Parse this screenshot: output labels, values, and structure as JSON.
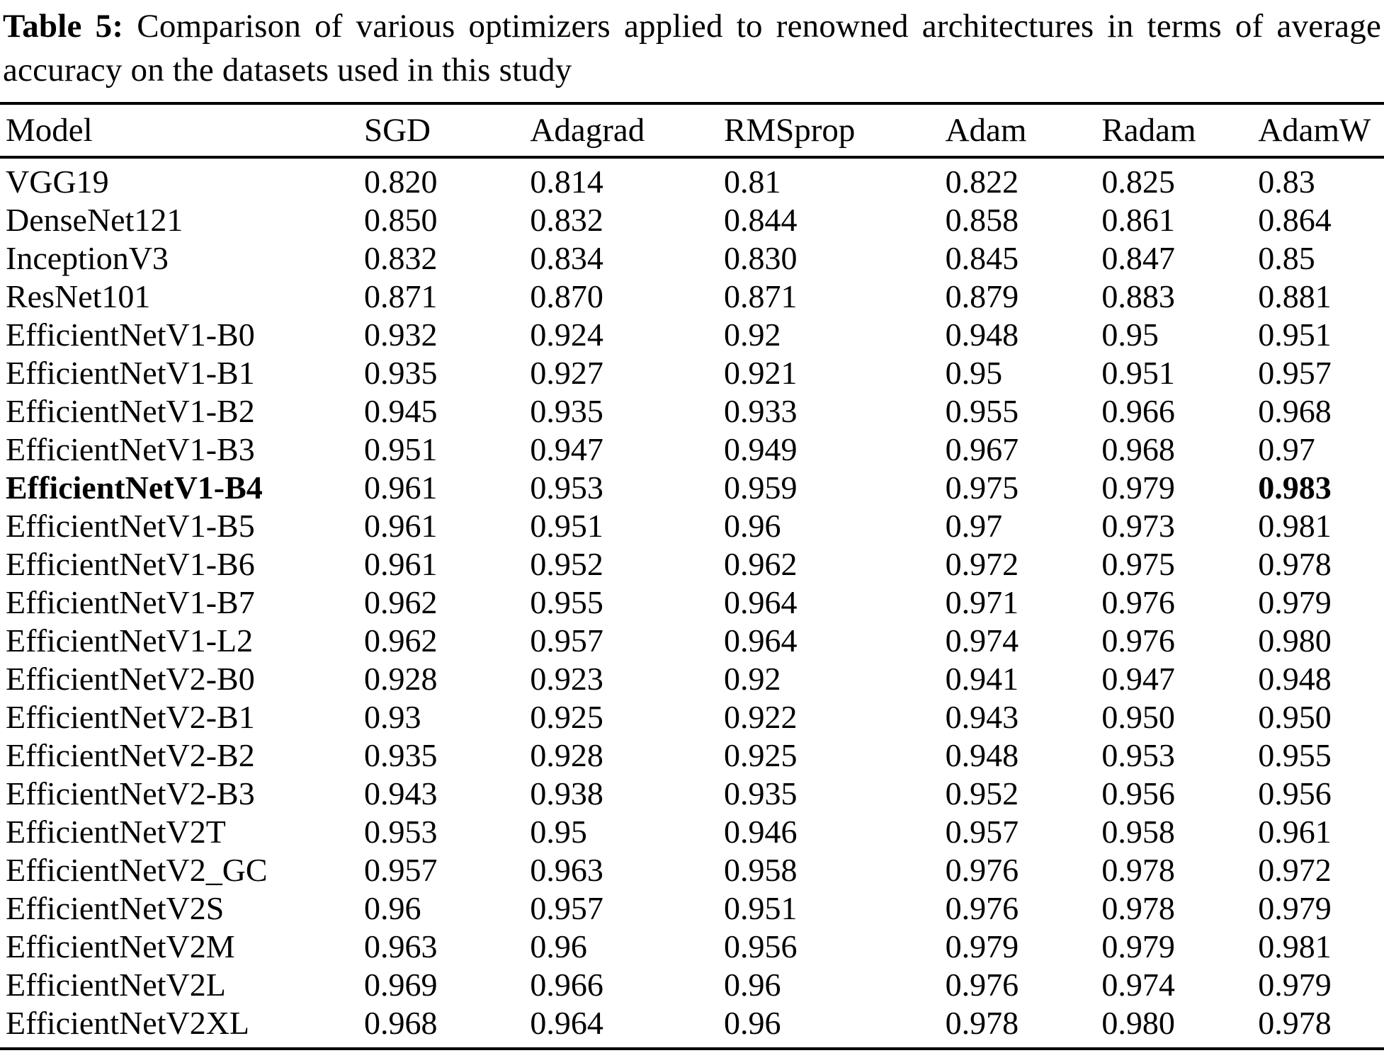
{
  "caption": {
    "label": "Table 5:",
    "text": "Comparison of various optimizers applied to renowned architectures in terms of average accuracy on the datasets used in this study"
  },
  "table": {
    "columns": [
      "Model",
      "SGD",
      "Adagrad",
      "RMSprop",
      "Adam",
      "Radam",
      "AdamW"
    ],
    "rows": [
      {
        "model": "VGG19",
        "bold_model": false,
        "values": [
          "0.820",
          "0.814",
          "0.81",
          "0.822",
          "0.825",
          "0.83"
        ],
        "bold_cols": []
      },
      {
        "model": "DenseNet121",
        "bold_model": false,
        "values": [
          "0.850",
          "0.832",
          "0.844",
          "0.858",
          "0.861",
          "0.864"
        ],
        "bold_cols": []
      },
      {
        "model": "InceptionV3",
        "bold_model": false,
        "values": [
          "0.832",
          "0.834",
          "0.830",
          "0.845",
          "0.847",
          "0.85"
        ],
        "bold_cols": []
      },
      {
        "model": "ResNet101",
        "bold_model": false,
        "values": [
          "0.871",
          "0.870",
          "0.871",
          "0.879",
          "0.883",
          "0.881"
        ],
        "bold_cols": []
      },
      {
        "model": "EfficientNetV1-B0",
        "bold_model": false,
        "values": [
          "0.932",
          "0.924",
          "0.92",
          "0.948",
          "0.95",
          "0.951"
        ],
        "bold_cols": []
      },
      {
        "model": "EfficientNetV1-B1",
        "bold_model": false,
        "values": [
          "0.935",
          "0.927",
          "0.921",
          "0.95",
          "0.951",
          "0.957"
        ],
        "bold_cols": []
      },
      {
        "model": "EfficientNetV1-B2",
        "bold_model": false,
        "values": [
          "0.945",
          "0.935",
          "0.933",
          "0.955",
          "0.966",
          "0.968"
        ],
        "bold_cols": []
      },
      {
        "model": "EfficientNetV1-B3",
        "bold_model": false,
        "values": [
          "0.951",
          "0.947",
          "0.949",
          "0.967",
          "0.968",
          "0.97"
        ],
        "bold_cols": []
      },
      {
        "model": "EfficientNetV1-B4",
        "bold_model": true,
        "values": [
          "0.961",
          "0.953",
          "0.959",
          "0.975",
          "0.979",
          "0.983"
        ],
        "bold_cols": [
          5
        ]
      },
      {
        "model": "EfficientNetV1-B5",
        "bold_model": false,
        "values": [
          "0.961",
          "0.951",
          "0.96",
          "0.97",
          "0.973",
          "0.981"
        ],
        "bold_cols": []
      },
      {
        "model": "EfficientNetV1-B6",
        "bold_model": false,
        "values": [
          "0.961",
          "0.952",
          "0.962",
          "0.972",
          "0.975",
          "0.978"
        ],
        "bold_cols": []
      },
      {
        "model": "EfficientNetV1-B7",
        "bold_model": false,
        "values": [
          "0.962",
          "0.955",
          "0.964",
          "0.971",
          "0.976",
          "0.979"
        ],
        "bold_cols": []
      },
      {
        "model": "EfficientNetV1-L2",
        "bold_model": false,
        "values": [
          "0.962",
          "0.957",
          "0.964",
          "0.974",
          "0.976",
          "0.980"
        ],
        "bold_cols": []
      },
      {
        "model": "EfficientNetV2-B0",
        "bold_model": false,
        "values": [
          "0.928",
          "0.923",
          "0.92",
          "0.941",
          "0.947",
          "0.948"
        ],
        "bold_cols": []
      },
      {
        "model": "EfficientNetV2-B1",
        "bold_model": false,
        "values": [
          "0.93",
          "0.925",
          "0.922",
          "0.943",
          "0.950",
          "0.950"
        ],
        "bold_cols": []
      },
      {
        "model": "EfficientNetV2-B2",
        "bold_model": false,
        "values": [
          "0.935",
          "0.928",
          "0.925",
          "0.948",
          "0.953",
          "0.955"
        ],
        "bold_cols": []
      },
      {
        "model": "EfficientNetV2-B3",
        "bold_model": false,
        "values": [
          "0.943",
          "0.938",
          "0.935",
          "0.952",
          "0.956",
          "0.956"
        ],
        "bold_cols": []
      },
      {
        "model": "EfficientNetV2T",
        "bold_model": false,
        "values": [
          "0.953",
          "0.95",
          "0.946",
          "0.957",
          "0.958",
          "0.961"
        ],
        "bold_cols": []
      },
      {
        "model": "EfficientNetV2_GC",
        "bold_model": false,
        "values": [
          "0.957",
          "0.963",
          "0.958",
          "0.976",
          "0.978",
          "0.972"
        ],
        "bold_cols": []
      },
      {
        "model": "EfficientNetV2S",
        "bold_model": false,
        "values": [
          "0.96",
          "0.957",
          "0.951",
          "0.976",
          "0.978",
          "0.979"
        ],
        "bold_cols": []
      },
      {
        "model": "EfficientNetV2M",
        "bold_model": false,
        "values": [
          "0.963",
          "0.96",
          "0.956",
          "0.979",
          "0.979",
          "0.981"
        ],
        "bold_cols": []
      },
      {
        "model": "EfficientNetV2L",
        "bold_model": false,
        "values": [
          "0.969",
          "0.966",
          "0.96",
          "0.976",
          "0.974",
          "0.979"
        ],
        "bold_cols": []
      },
      {
        "model": "EfficientNetV2XL",
        "bold_model": false,
        "values": [
          "0.968",
          "0.964",
          "0.96",
          "0.978",
          "0.980",
          "0.978"
        ],
        "bold_cols": []
      }
    ]
  }
}
